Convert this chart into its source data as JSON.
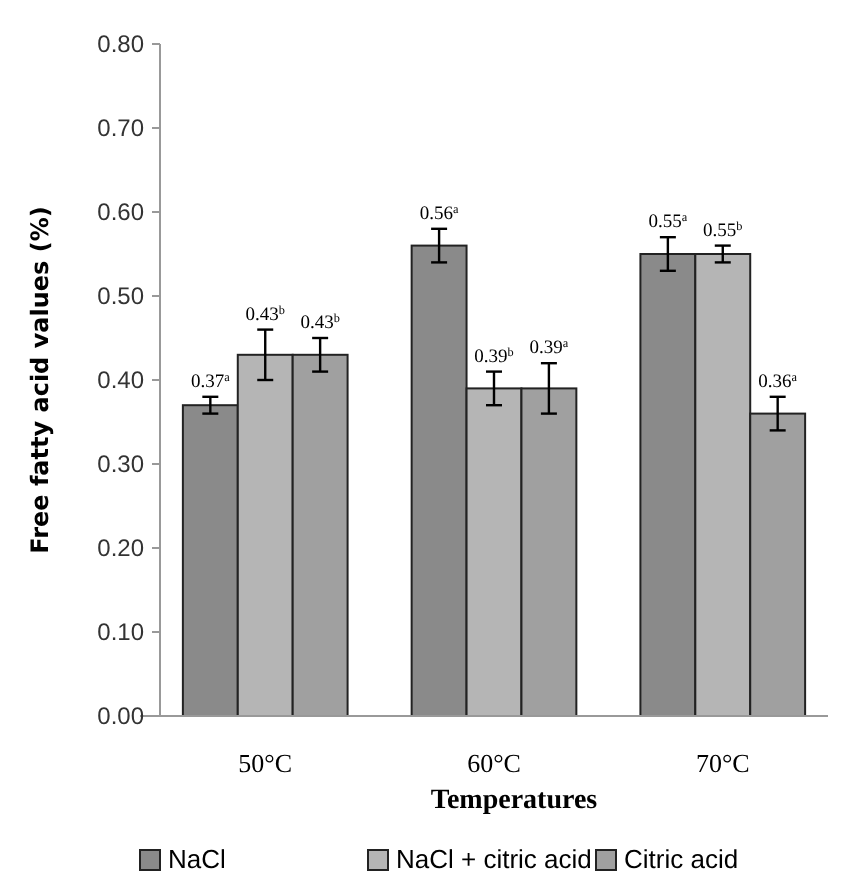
{
  "chart_data": {
    "type": "bar",
    "xlabel": "Temperatures",
    "ylabel": "Free fatty acid values (%)",
    "categories": [
      "50°C",
      "60°C",
      "70°C"
    ],
    "series": [
      {
        "name": "NaCl",
        "color": "#8a8a8a",
        "values": [
          0.37,
          0.56,
          0.55
        ],
        "errors": [
          0.01,
          0.02,
          0.02
        ],
        "value_labels": [
          "0.37$^{a}$",
          "0.56$^{a}$",
          "0.55$^{a}$"
        ]
      },
      {
        "name": "NaCl + citric acid",
        "color": "#b5b5b5",
        "values": [
          0.43,
          0.39,
          0.55
        ],
        "errors": [
          0.03,
          0.02,
          0.01
        ],
        "value_labels": [
          "0.43$^{b}$",
          "0.39$^{b}$",
          "0.55$^{b}$"
        ]
      },
      {
        "name": "Citric acid",
        "color": "#a0a0a0",
        "values": [
          0.43,
          0.39,
          0.36
        ],
        "errors": [
          0.02,
          0.03,
          0.02
        ],
        "value_labels": [
          "0.43$^{b}$",
          "0.39$^{a}$",
          "0.36$^{a}$"
        ]
      }
    ],
    "ylim": [
      0,
      0.8
    ],
    "yticks": [
      {
        "value": 0,
        "label": "0.00"
      },
      {
        "value": 0.1,
        "label": "0.10"
      },
      {
        "value": 0.2,
        "label": "0.20"
      },
      {
        "value": 0.3,
        "label": "0.30"
      },
      {
        "value": 0.4,
        "label": "0.40"
      },
      {
        "value": 0.5,
        "label": "0.50"
      },
      {
        "value": 0.6,
        "label": "0.60"
      },
      {
        "value": 0.7,
        "label": "0.70"
      },
      {
        "value": 0.8,
        "label": "0.80"
      }
    ],
    "grid": false,
    "legend": "bottom"
  }
}
